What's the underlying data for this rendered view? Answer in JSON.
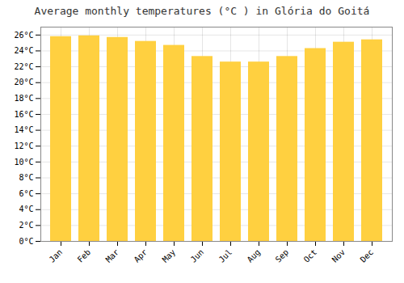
{
  "chart_data": {
    "type": "bar",
    "title": "Average monthly temperatures (°C ) in Glória do Goitá",
    "categories": [
      "Jan",
      "Feb",
      "Mar",
      "Apr",
      "May",
      "Jun",
      "Jul",
      "Aug",
      "Sep",
      "Oct",
      "Nov",
      "Dec"
    ],
    "values": [
      25.8,
      25.9,
      25.7,
      25.2,
      24.7,
      23.3,
      22.6,
      22.6,
      23.3,
      24.3,
      25.1,
      25.4
    ],
    "color": "#FFD040",
    "ylim": [
      0,
      27
    ],
    "yticks": [
      {
        "value": 0,
        "label": "0°C"
      },
      {
        "value": 2,
        "label": "2°C"
      },
      {
        "value": 4,
        "label": "4°C"
      },
      {
        "value": 6,
        "label": "6°C"
      },
      {
        "value": 8,
        "label": "8°C"
      },
      {
        "value": 10,
        "label": "10°C"
      },
      {
        "value": 12,
        "label": "12°C"
      },
      {
        "value": 14,
        "label": "14°C"
      },
      {
        "value": 16,
        "label": "16°C"
      },
      {
        "value": 18,
        "label": "18°C"
      },
      {
        "value": 20,
        "label": "20°C"
      },
      {
        "value": 22,
        "label": "22°C"
      },
      {
        "value": 24,
        "label": "24°C"
      },
      {
        "value": 26,
        "label": "26°C"
      }
    ],
    "grid": true
  }
}
